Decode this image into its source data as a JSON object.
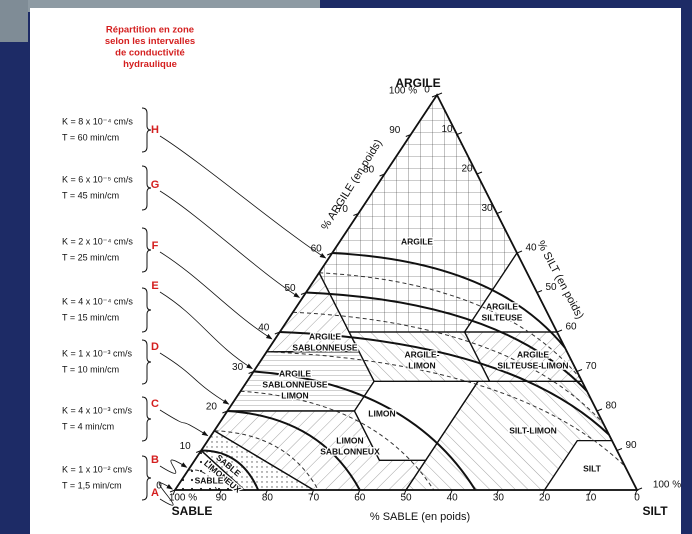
{
  "header": {
    "title_lines": [
      "Répartition en zone",
      "selon les intervalles",
      "de conductivité",
      "hydraulique"
    ]
  },
  "zones": [
    {
      "letter": "H",
      "k": "K = 8 x 10⁻⁴ cm/s",
      "t": "T = 60 min/cm"
    },
    {
      "letter": "G",
      "k": "K = 6 x 10⁻⁵ cm/s",
      "t": "T = 45 min/cm"
    },
    {
      "letter": "F",
      "k": "K = 2 x 10⁻⁴ cm/s",
      "t": "T = 25 min/cm"
    },
    {
      "letter": "E",
      "k": "K = 4 x 10⁻⁴ cm/s",
      "t": "T = 15 min/cm"
    },
    {
      "letter": "D",
      "k": "K = 1 x 10⁻³ cm/s",
      "t": "T = 10 min/cm"
    },
    {
      "letter": "C",
      "k": "K = 4 x 10⁻³ cm/s",
      "t": "T = 4 min/cm"
    },
    {
      "letter": "B",
      "k": "K = 1 x 10⁻² cm/s",
      "t": "T = 1,5 min/cm"
    },
    {
      "letter": "A"
    }
  ],
  "triangle": {
    "apex_label": "ARGILE",
    "left_label": "SABLE",
    "right_label": "SILT",
    "left_axis_title": "% ARGILE (en poids)",
    "right_axis_title": "% SILT (en poids)",
    "bottom_axis_title": "% SABLE (en poids)",
    "left_ticks": [
      "0",
      "10",
      "20",
      "30",
      "40",
      "50",
      "60",
      "70",
      "80",
      "90",
      "100 %"
    ],
    "right_ticks": [
      "0",
      "10",
      "20",
      "30",
      "40",
      "50",
      "60",
      "70",
      "80",
      "90",
      "100 %"
    ],
    "bottom_ticks": [
      "100 %",
      "90",
      "80",
      "70",
      "60",
      "50",
      "40",
      "30",
      "20",
      "10",
      "0"
    ]
  },
  "classes": [
    {
      "lines": [
        "ARGILE"
      ]
    },
    {
      "lines": [
        "ARGILE",
        "SILTEUSE"
      ]
    },
    {
      "lines": [
        "ARGILE",
        "SABLONNEUSE"
      ]
    },
    {
      "lines": [
        "ARGILE-",
        "LIMON"
      ]
    },
    {
      "lines": [
        "ARGILE",
        "SILTEUSE-LIMON"
      ]
    },
    {
      "lines": [
        "ARGILE",
        "SABLONNEUSE",
        "LIMON"
      ]
    },
    {
      "lines": [
        "LIMON"
      ]
    },
    {
      "lines": [
        "SILT-LIMON"
      ]
    },
    {
      "lines": [
        "LIMON",
        "SABLONNEUX"
      ]
    },
    {
      "lines": [
        "SILT"
      ]
    },
    {
      "lines": [
        "SABLE",
        "LIMONEUX"
      ]
    },
    {
      "lines": [
        "SABLE"
      ]
    }
  ]
}
